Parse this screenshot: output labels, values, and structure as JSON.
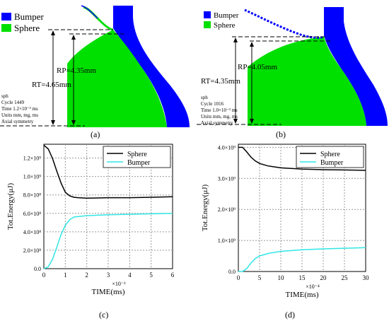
{
  "colors": {
    "sphere": "#00e000",
    "bumper": "#0000ff",
    "sphere_line": "#000000",
    "bumper_line": "#33e5e5"
  },
  "panels": {
    "a": {
      "label": "(a)",
      "legend": [
        "Bumper",
        "Sphere"
      ],
      "rp": "R<sub>P</sub>=4.35mm",
      "rp_text": "RP=4.35mm",
      "rt_text": "RT=4.65mm",
      "info": [
        "sph",
        "Cycle 1449",
        "Time 1.2×10⁻³ ms",
        "Units mm, mg, ms",
        "Axial symmetry"
      ]
    },
    "b": {
      "label": "(b)",
      "legend": [
        "Bumper",
        "Sphere"
      ],
      "rp_text": "RP=4.05mm",
      "rt_text": "RT=4.35mm",
      "info": [
        "sph",
        "Cycle 1016",
        "Time 1.0×10⁻³ ms",
        "Units mm, mg, ms",
        "Axial symmetry"
      ]
    },
    "c": {
      "label": "(c)",
      "xscale": "×10⁻³",
      "xlabel": "TIME(ms)",
      "ylabel": "Tot.Energy(μJ)"
    },
    "d": {
      "label": "(d)",
      "xscale": "×10⁻⁴",
      "xlabel": "TIME(ms)",
      "ylabel": "Tot.Energy(μJ)"
    }
  },
  "chart_data": [
    {
      "type": "line",
      "xlim": [
        0,
        6
      ],
      "ylim": [
        0,
        1350000000.0
      ],
      "x_ticks": [
        "0",
        "1",
        "2",
        "3",
        "4",
        "5",
        "6"
      ],
      "y_ticks": [
        "0.0",
        "2.0×10⁸",
        "4.0×10⁸",
        "6.0×10⁸",
        "8.0×10⁸",
        "1.0×10⁹",
        "1.2×10⁹"
      ],
      "y_tick_values": [
        0,
        200000000.0,
        400000000.0,
        600000000.0,
        800000000.0,
        1000000000.0,
        1200000000.0
      ],
      "grid": true,
      "legend_position": "top-right",
      "series": [
        {
          "name": "Sphere",
          "x": [
            0,
            0.2,
            0.4,
            0.6,
            0.8,
            1.0,
            1.2,
            1.4,
            1.6,
            2.0,
            3.0,
            4.0,
            5.0,
            6.0
          ],
          "y": [
            1340000000.0,
            1300000000.0,
            1200000000.0,
            1060000000.0,
            930000000.0,
            830000000.0,
            790000000.0,
            775000000.0,
            770000000.0,
            765000000.0,
            770000000.0,
            770000000.0,
            775000000.0,
            780000000.0
          ]
        },
        {
          "name": "Bumper",
          "x": [
            0,
            0.2,
            0.4,
            0.6,
            0.8,
            1.0,
            1.2,
            1.4,
            1.6,
            2.0,
            3.0,
            4.0,
            5.0,
            6.0
          ],
          "y": [
            0,
            20000000.0,
            100000000.0,
            230000000.0,
            370000000.0,
            470000000.0,
            530000000.0,
            560000000.0,
            565000000.0,
            575000000.0,
            585000000.0,
            590000000.0,
            595000000.0,
            600000000.0
          ]
        }
      ]
    },
    {
      "type": "line",
      "xlim": [
        0,
        30
      ],
      "ylim": [
        0,
        4100000000.0
      ],
      "x_ticks": [
        "0",
        "5",
        "10",
        "15",
        "20",
        "25",
        "30"
      ],
      "y_ticks": [
        "0.0",
        "1.0×10⁹",
        "2.0×10⁹",
        "3.0×10⁹",
        "4.0×10⁹"
      ],
      "y_tick_values": [
        0,
        1000000000.0,
        2000000000.0,
        3000000000.0,
        4000000000.0
      ],
      "grid": true,
      "legend_position": "top-right",
      "series": [
        {
          "name": "Sphere",
          "x": [
            0,
            1,
            2,
            3,
            4,
            5,
            7,
            10,
            15,
            20,
            25,
            30
          ],
          "y": [
            4000000000.0,
            4000000000.0,
            3850000000.0,
            3680000000.0,
            3560000000.0,
            3480000000.0,
            3400000000.0,
            3340000000.0,
            3300000000.0,
            3280000000.0,
            3270000000.0,
            3260000000.0
          ]
        },
        {
          "name": "Bumper",
          "x": [
            0,
            1,
            2,
            3,
            4,
            5,
            7,
            10,
            15,
            20,
            25,
            30
          ],
          "y": [
            0,
            0.0,
            100000000.0,
            280000000.0,
            420000000.0,
            500000000.0,
            580000000.0,
            650000000.0,
            700000000.0,
            730000000.0,
            750000000.0,
            770000000.0
          ]
        }
      ]
    }
  ]
}
